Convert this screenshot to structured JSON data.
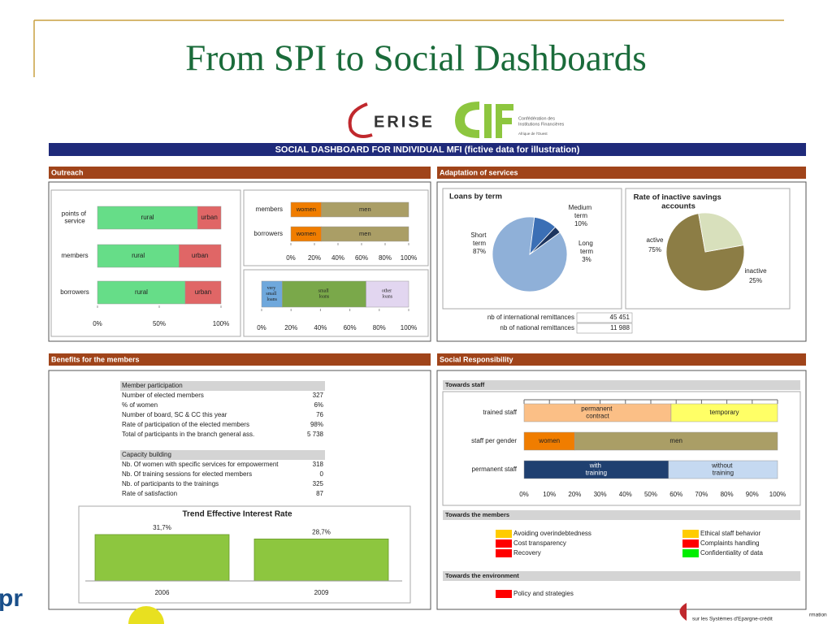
{
  "title": "From SPI to Social Dashboards",
  "logos": {
    "cerise": "ERISE",
    "cif_lines": [
      "Confédération des",
      "Institutions Financières",
      "Afrique de l'Ouest"
    ]
  },
  "banner": "SOCIAL DASHBOARD FOR INDIVIDUAL MFI (fictive data for illustration)",
  "outreach": {
    "header": "Outreach",
    "location": {
      "type": "bar",
      "orientation": "horizontal",
      "stacked": true,
      "categories": [
        "points of service",
        "members",
        "borrowers"
      ],
      "series": [
        {
          "name": "rural",
          "color": "#66dd88",
          "values": [
            81,
            66,
            71
          ]
        },
        {
          "name": "urban",
          "color": "#e06666",
          "values": [
            19,
            34,
            29
          ]
        }
      ],
      "xlim": [
        0,
        100
      ],
      "xticks": [
        {
          "value": 0,
          "label": "0%"
        },
        {
          "value": 50,
          "label": "50%"
        },
        {
          "value": 100,
          "label": "100%"
        }
      ]
    },
    "gender": {
      "type": "bar",
      "orientation": "horizontal",
      "stacked": true,
      "categories": [
        "members",
        "borrowers"
      ],
      "series": [
        {
          "name": "women",
          "color": "#f07d00",
          "values": [
            26,
            26
          ]
        },
        {
          "name": "men",
          "color": "#aa9e66",
          "values": [
            74,
            74
          ]
        }
      ],
      "xlim": [
        0,
        100
      ],
      "xticks": [
        {
          "value": 0,
          "label": "0%"
        },
        {
          "value": 20,
          "label": "20%"
        },
        {
          "value": 40,
          "label": "40%"
        },
        {
          "value": 60,
          "label": "60%"
        },
        {
          "value": 80,
          "label": "80%"
        },
        {
          "value": 100,
          "label": "100%"
        }
      ]
    },
    "loan_size": {
      "type": "bar",
      "orientation": "horizontal",
      "stacked": true,
      "categories": [
        null
      ],
      "series": [
        {
          "name": "very small loans",
          "color": "#6fa8dc",
          "values": [
            14
          ]
        },
        {
          "name": "small loans",
          "color": "#7aa84a",
          "values": [
            57
          ]
        },
        {
          "name": "other loans",
          "color": "#e2d6f0",
          "values": [
            29
          ]
        }
      ],
      "xlim": [
        0,
        100
      ],
      "xticks": [
        {
          "value": 0,
          "label": "0%"
        },
        {
          "value": 20,
          "label": "20%"
        },
        {
          "value": 40,
          "label": "40%"
        },
        {
          "value": 60,
          "label": "60%"
        },
        {
          "value": 80,
          "label": "80%"
        },
        {
          "value": 100,
          "label": "100%"
        }
      ]
    }
  },
  "adaptation": {
    "header": "Adaptation of services",
    "loans_by_term": {
      "type": "pie",
      "title": "Loans by term",
      "labels": [
        "Short term",
        "Medium term",
        "Long term"
      ],
      "values": [
        87,
        10,
        3
      ],
      "value_labels": [
        "87%",
        "10%",
        "3%"
      ],
      "colors": [
        "#8fb0d8",
        "#3b6fb5",
        "#1c3560"
      ]
    },
    "inactive_savings": {
      "type": "pie",
      "title": "Rate of inactive savings accounts",
      "labels": [
        "active",
        "inactive"
      ],
      "values": [
        75,
        25
      ],
      "value_labels": [
        "75%",
        "25%"
      ],
      "colors": [
        "#8c7d45",
        "#d8e0bc"
      ]
    },
    "remittances": {
      "rows": [
        [
          "nb of international remittances",
          "45 451"
        ],
        [
          "nb of national remittances",
          "11 988"
        ]
      ]
    }
  },
  "benefits": {
    "header": "Benefits for the members",
    "sections": [
      {
        "title": "Member participation",
        "rows": [
          [
            "Number of elected members",
            "327"
          ],
          [
            "% of women",
            "6%"
          ],
          [
            "Number of board, SC & CC this year",
            "76"
          ],
          [
            "Rate of participation of the elected members",
            "98%"
          ],
          [
            "Total of participants in the branch general ass.",
            "5 738"
          ]
        ]
      },
      {
        "title": "Capacity building",
        "rows": [
          [
            "Nb. Of women with specific services for empowerment",
            "318"
          ],
          [
            "Nb. Of training sessions for elected members",
            "0"
          ],
          [
            "Nb. of participants to the trainings",
            "325"
          ],
          [
            "Rate of satisfaction",
            "87"
          ]
        ]
      }
    ],
    "interest_rate": {
      "type": "bar",
      "title": "Trend Effective Interest Rate",
      "categories": [
        "2006",
        "2009"
      ],
      "values": [
        31.7,
        28.7
      ],
      "value_labels": [
        "31,7%",
        "28,7%"
      ],
      "color": "#8dc63f"
    }
  },
  "social": {
    "header": "Social Responsibility",
    "staff": {
      "title": "Towards staff",
      "type": "bar",
      "orientation": "horizontal",
      "stacked": true,
      "categories": [
        "trained staff",
        "staff per gender",
        "permanent staff"
      ],
      "series": [
        {
          "name": "permanent contract",
          "color": "#fbbf86",
          "values": [
            58,
            null,
            null
          ]
        },
        {
          "name": "temporary",
          "color": "#ffff66",
          "values": [
            42,
            null,
            null
          ]
        },
        {
          "name": "women",
          "color": "#f07d00",
          "values": [
            null,
            20,
            null
          ]
        },
        {
          "name": "men",
          "color": "#aa9e66",
          "values": [
            null,
            80,
            null
          ]
        },
        {
          "name": "with training",
          "color": "#1f4070",
          "values": [
            null,
            null,
            57
          ]
        },
        {
          "name": "without training",
          "color": "#c5d9f1",
          "values": [
            null,
            null,
            43
          ]
        }
      ],
      "xlim": [
        0,
        100
      ],
      "xticks": [
        {
          "value": 0,
          "label": "0%"
        },
        {
          "value": 10,
          "label": "10%"
        },
        {
          "value": 20,
          "label": "20%"
        },
        {
          "value": 30,
          "label": "30%"
        },
        {
          "value": 40,
          "label": "40%"
        },
        {
          "value": 50,
          "label": "50%"
        },
        {
          "value": 60,
          "label": "60%"
        },
        {
          "value": 70,
          "label": "70%"
        },
        {
          "value": 80,
          "label": "80%"
        },
        {
          "value": 90,
          "label": "90%"
        },
        {
          "value": 100,
          "label": "100%"
        }
      ]
    },
    "members": {
      "title": "Towards the members",
      "items": [
        {
          "label": "Avoiding overindebtedness",
          "color": "#ffcc00"
        },
        {
          "label": "Cost transparency",
          "color": "#ff0000"
        },
        {
          "label": "Recovery",
          "color": "#ff0000"
        },
        {
          "label": "Ethical staff behavior",
          "color": "#ffcc00"
        },
        {
          "label": "Complaints handling",
          "color": "#ff0000"
        },
        {
          "label": "Confidentiality of data",
          "color": "#00ee00"
        }
      ]
    },
    "environment": {
      "title": "Towards the environment",
      "items": [
        {
          "label": "Policy and strategies",
          "color": "#ff0000"
        }
      ]
    }
  },
  "footer": {
    "left": "pr",
    "right": "sur les Systèmes d'Epargne-crédit",
    "edge": "rmation"
  }
}
